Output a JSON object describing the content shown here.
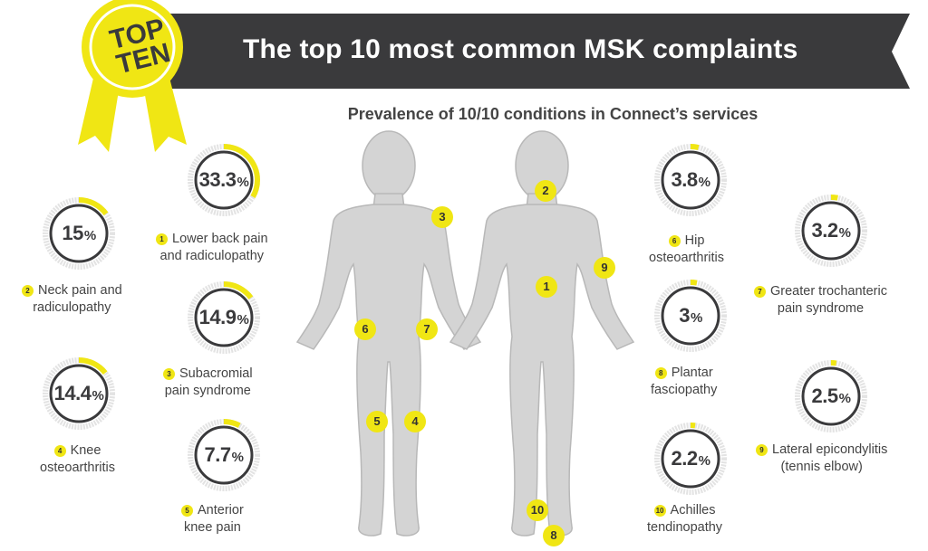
{
  "header": {
    "title": "The top 10 most common MSK complaints",
    "badge_line1": "TOP",
    "badge_line2": "TEN"
  },
  "subtitle": "Prevalence of 10/10 conditions in Connect’s services",
  "colors": {
    "accent_yellow": "#f0e614",
    "banner_dark": "#3a3a3c",
    "figure_gray": "#d4d4d4",
    "ring_gray": "#e3e3e3"
  },
  "conditions": [
    {
      "rank": "1",
      "value": "33.3",
      "fraction": 0.333,
      "line1": "Lower back pain",
      "line2": "and radiculopathy"
    },
    {
      "rank": "2",
      "value": "15",
      "fraction": 0.15,
      "line1": "Neck pain and",
      "line2": "radiculopathy"
    },
    {
      "rank": "3",
      "value": "14.9",
      "fraction": 0.149,
      "line1": "Subacromial",
      "line2": "pain syndrome"
    },
    {
      "rank": "4",
      "value": "14.4",
      "fraction": 0.144,
      "line1": "Knee",
      "line2": "osteoarthritis"
    },
    {
      "rank": "5",
      "value": "7.7",
      "fraction": 0.077,
      "line1": "Anterior",
      "line2": "knee pain"
    },
    {
      "rank": "6",
      "value": "3.8",
      "fraction": 0.038,
      "line1": "Hip",
      "line2": "osteoarthritis"
    },
    {
      "rank": "7",
      "value": "3.2",
      "fraction": 0.032,
      "line1": "Greater trochanteric",
      "line2": "pain syndrome"
    },
    {
      "rank": "8",
      "value": "3",
      "fraction": 0.03,
      "line1": "Plantar",
      "line2": "fasciopathy"
    },
    {
      "rank": "9",
      "value": "2.5",
      "fraction": 0.025,
      "line1": "Lateral epicondylitis",
      "line2": "(tennis elbow)"
    },
    {
      "rank": "10",
      "value": "2.2",
      "fraction": 0.022,
      "line1": "Achilles",
      "line2": "tendinopathy"
    }
  ],
  "percent_sign": "%",
  "body_markers": [
    "3",
    "6",
    "7",
    "5",
    "4",
    "2",
    "1",
    "9",
    "10",
    "8"
  ]
}
